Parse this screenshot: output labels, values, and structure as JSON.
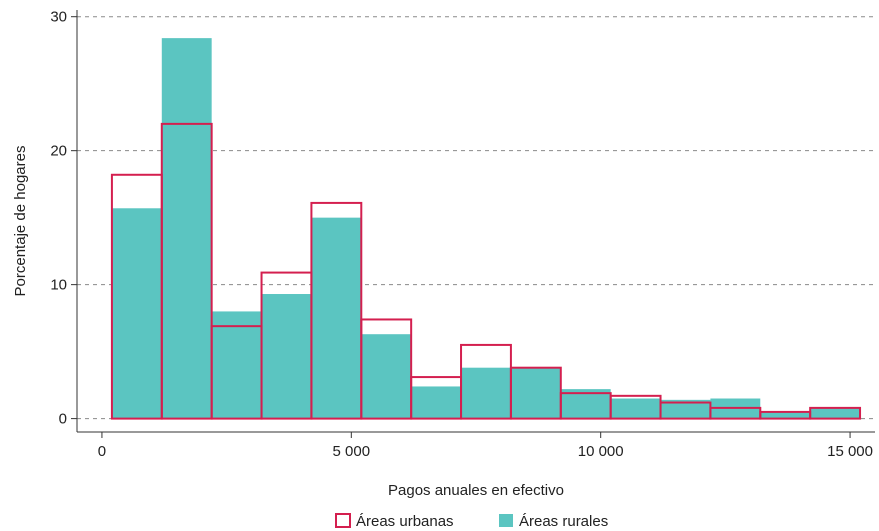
{
  "chart_data": {
    "type": "bar",
    "title": "",
    "xlabel": "Pagos anuales en efectivo",
    "ylabel": "Porcentaje de hogares",
    "xlim": [
      -500,
      15500
    ],
    "ylim": [
      -1,
      30.5
    ],
    "x_ticks": [
      0,
      5000,
      10000,
      15000
    ],
    "x_tick_labels": [
      "0",
      "5 000",
      "10 000",
      "15 000"
    ],
    "y_ticks": [
      0,
      10,
      20,
      30
    ],
    "y_tick_labels": [
      "0",
      "10",
      "20",
      "30"
    ],
    "grid": true,
    "legend_position": "bottom",
    "bins": [
      [
        200,
        1200
      ],
      [
        1200,
        2200
      ],
      [
        2200,
        3200
      ],
      [
        3200,
        4200
      ],
      [
        4200,
        5200
      ],
      [
        5200,
        6200
      ],
      [
        6200,
        7200
      ],
      [
        7200,
        8200
      ],
      [
        8200,
        9200
      ],
      [
        9200,
        10200
      ],
      [
        10200,
        11200
      ],
      [
        11200,
        12200
      ],
      [
        12200,
        13200
      ],
      [
        13200,
        14200
      ],
      [
        14200,
        15200
      ]
    ],
    "series": [
      {
        "name": "Áreas rurales",
        "style": "filled",
        "color": "#5bc5c1",
        "values": [
          15.7,
          28.4,
          8.0,
          9.3,
          15.0,
          6.3,
          2.4,
          3.8,
          3.8,
          2.2,
          1.5,
          1.4,
          1.5,
          0.5,
          0.8
        ]
      },
      {
        "name": "Áreas urbanas",
        "style": "outline",
        "color": "#d41f4f",
        "values": [
          18.2,
          22.0,
          6.9,
          10.9,
          16.1,
          7.4,
          3.1,
          5.5,
          3.8,
          1.9,
          1.7,
          1.2,
          0.8,
          0.5,
          0.8
        ]
      }
    ]
  }
}
